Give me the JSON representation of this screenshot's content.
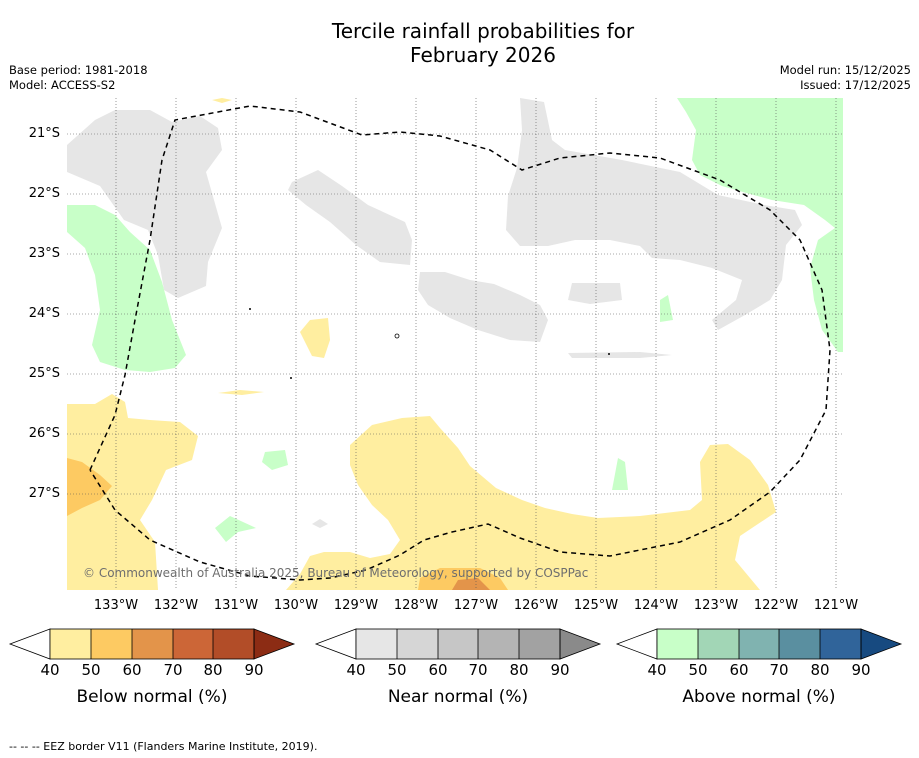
{
  "title": {
    "line1": "Tercile rainfall probabilities for",
    "line2": "February 2026"
  },
  "meta": {
    "base_period": "Base period: 1981-2018",
    "model": "Model: ACCESS-S2",
    "model_run": "Model run: 15/12/2025",
    "issued": "Issued: 17/12/2025"
  },
  "map": {
    "latitude_labels": [
      "21°S",
      "22°S",
      "23°S",
      "24°S",
      "25°S",
      "26°S",
      "27°S"
    ],
    "longitude_labels": [
      "133°W",
      "132°W",
      "131°W",
      "130°W",
      "129°W",
      "128°W",
      "127°W",
      "126°W",
      "125°W",
      "124°W",
      "123°W",
      "122°W",
      "121°W"
    ],
    "copyright": "© Commonwealth of Australia 2025, Bureau of Meteorology, supported by COSPPac"
  },
  "colorbars": [
    {
      "title": "Below normal (%)",
      "ticks": [
        "40",
        "50",
        "60",
        "70",
        "80",
        "90"
      ],
      "colors": [
        "#ffffff",
        "#ffeea0",
        "#fdca62",
        "#e3944a",
        "#cc6637",
        "#b24d28",
        "#8c2c14"
      ]
    },
    {
      "title": "Near normal (%)",
      "ticks": [
        "40",
        "50",
        "60",
        "70",
        "80",
        "90"
      ],
      "colors": [
        "#ffffff",
        "#e6e6e6",
        "#d6d6d6",
        "#c6c6c6",
        "#b4b4b4",
        "#a2a2a2",
        "#8a8a8a"
      ]
    },
    {
      "title": "Above normal (%)",
      "ticks": [
        "40",
        "50",
        "60",
        "70",
        "80",
        "90"
      ],
      "colors": [
        "#ffffff",
        "#c8ffc8",
        "#a2d6b6",
        "#80b3b0",
        "#5a8fa0",
        "#30649a",
        "#174a80"
      ]
    }
  ],
  "footer": "--  --  -- EEZ border V11 (Flanders Marine Institute, 2019)."
}
